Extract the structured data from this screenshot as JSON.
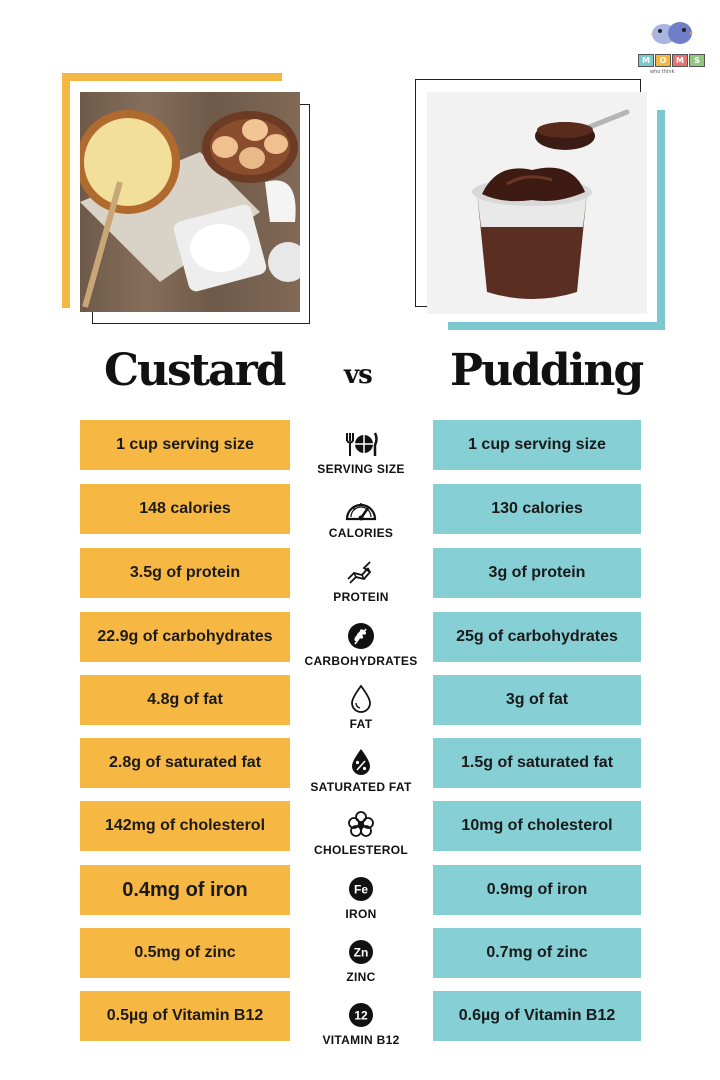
{
  "logo": {
    "blocks": [
      "M",
      "O",
      "M",
      "S"
    ],
    "tagline": "who think"
  },
  "titles": {
    "left": "Custard",
    "vs": "vs",
    "right": "Pudding"
  },
  "rows": [
    {
      "left": "1 cup serving size",
      "label": "SERVING SIZE",
      "right": "1 cup serving size",
      "icon": "plate-cutlery-icon"
    },
    {
      "left": "148 calories",
      "label": "CALORIES",
      "right": "130 calories",
      "icon": "gauge-icon"
    },
    {
      "left": "3.5g of protein",
      "label": "PROTEIN",
      "right": "3g of protein",
      "icon": "molecule-icon"
    },
    {
      "left": "22.9g of carbohydrates",
      "label": "CARBOHYDRATES",
      "right": "25g of carbohydrates",
      "icon": "wheat-icon"
    },
    {
      "left": "4.8g of fat",
      "label": "FAT",
      "right": "3g of fat",
      "icon": "drop-icon"
    },
    {
      "left": "2.8g of saturated fat",
      "label": "SATURATED FAT",
      "right": "1.5g of saturated fat",
      "icon": "percent-drop-icon"
    },
    {
      "left": "142mg of cholesterol",
      "label": "CHOLESTEROL",
      "right": "10mg of cholesterol",
      "icon": "cholesterol-icon"
    },
    {
      "left": "0.4mg of iron",
      "label": "IRON",
      "right": "0.9mg of iron",
      "icon": "fe-icon",
      "symbol": "Fe"
    },
    {
      "left": "0.5mg of zinc",
      "label": "ZINC",
      "right": "0.7mg of zinc",
      "icon": "zn-icon",
      "symbol": "Zn"
    },
    {
      "left": "0.5µg of Vitamin B12",
      "label": "VITAMIN B12",
      "right": "0.6µg of Vitamin B12",
      "icon": "b12-icon",
      "symbol": "12"
    }
  ],
  "colors": {
    "custard": "#f7b843",
    "pudding": "#86cfd4",
    "text": "#1a1a1a"
  }
}
